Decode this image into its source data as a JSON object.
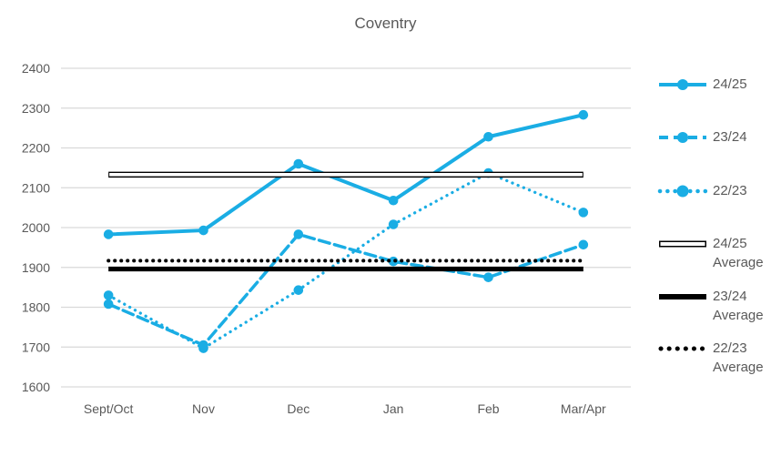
{
  "title": "Coventry",
  "colors": {
    "series_blue": "#1AADE4",
    "average_black": "#000000",
    "text": "#595959",
    "gridline": "#D9D9D9",
    "background": "#FFFFFF"
  },
  "chart_data": {
    "type": "line",
    "title": "Coventry",
    "categories": [
      "Sept/Oct",
      "Nov",
      "Dec",
      "Jan",
      "Feb",
      "Mar/Apr"
    ],
    "series": [
      {
        "name": "24/25",
        "style": "solid",
        "color": "#1AADE4",
        "values": [
          1983,
          1993,
          2160,
          2068,
          2228,
          2283
        ]
      },
      {
        "name": "23/24",
        "style": "dashed",
        "color": "#1AADE4",
        "values": [
          1808,
          1705,
          1983,
          1915,
          1875,
          1957
        ]
      },
      {
        "name": "22/23",
        "style": "dotted",
        "color": "#1AADE4",
        "values": [
          1830,
          1697,
          1843,
          2008,
          2137,
          2038
        ]
      }
    ],
    "average_lines": [
      {
        "name": "24/25 Average",
        "style": "double",
        "color": "#000000",
        "value": 2133
      },
      {
        "name": "23/24 Average",
        "style": "solid",
        "color": "#000000",
        "value": 1896
      },
      {
        "name": "22/23 Average",
        "style": "dotted",
        "color": "#000000",
        "value": 1917
      }
    ],
    "ylim": [
      1600,
      2400
    ],
    "yticks": [
      2400,
      2300,
      2200,
      2100,
      2000,
      1900,
      1800,
      1700,
      1600
    ],
    "grid": true,
    "legend_position": "right"
  },
  "legend": {
    "items": [
      {
        "label": "24/25",
        "sublabel": ""
      },
      {
        "label": "23/24",
        "sublabel": ""
      },
      {
        "label": "22/23",
        "sublabel": ""
      },
      {
        "label": "24/25",
        "sublabel": "Average"
      },
      {
        "label": "23/24",
        "sublabel": "Average"
      },
      {
        "label": "22/23",
        "sublabel": "Average"
      }
    ]
  }
}
